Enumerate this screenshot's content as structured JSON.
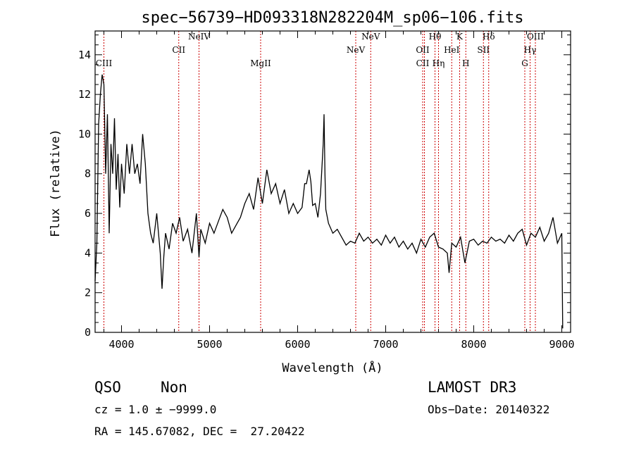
{
  "chart_data": {
    "type": "line",
    "title": "spec−56739−HD093318N282204M_sp06−106.fits",
    "xlabel": "Wavelength (Å)",
    "ylabel": "Flux (relative)",
    "xlim": [
      3700,
      9100
    ],
    "ylim": [
      0,
      15.2
    ],
    "xticks": [
      4000,
      5000,
      6000,
      7000,
      8000,
      9000
    ],
    "yticks": [
      0,
      2,
      4,
      6,
      8,
      10,
      12,
      14
    ],
    "grid": false,
    "series": [
      {
        "color": "#000000",
        "x": [
          3700,
          3720,
          3740,
          3760,
          3780,
          3800,
          3820,
          3840,
          3860,
          3880,
          3900,
          3920,
          3940,
          3960,
          3980,
          4000,
          4030,
          4060,
          4090,
          4120,
          4150,
          4180,
          4210,
          4240,
          4270,
          4300,
          4330,
          4360,
          4400,
          4440,
          4460,
          4480,
          4500,
          4540,
          4580,
          4620,
          4660,
          4700,
          4750,
          4800,
          4850,
          4880,
          4900,
          4950,
          5000,
          5050,
          5100,
          5150,
          5200,
          5250,
          5300,
          5350,
          5400,
          5450,
          5500,
          5550,
          5600,
          5650,
          5700,
          5750,
          5800,
          5850,
          5900,
          5950,
          6000,
          6050,
          6080,
          6100,
          6130,
          6150,
          6170,
          6200,
          6230,
          6260,
          6290,
          6300,
          6310,
          6320,
          6350,
          6400,
          6450,
          6500,
          6550,
          6600,
          6650,
          6700,
          6750,
          6800,
          6850,
          6900,
          6950,
          7000,
          7050,
          7100,
          7150,
          7200,
          7250,
          7300,
          7350,
          7400,
          7450,
          7500,
          7550,
          7600,
          7650,
          7700,
          7720,
          7750,
          7800,
          7850,
          7900,
          7950,
          8000,
          8050,
          8100,
          8150,
          8200,
          8250,
          8300,
          8350,
          8400,
          8450,
          8500,
          8550,
          8600,
          8650,
          8700,
          8750,
          8800,
          8850,
          8900,
          8950,
          9000,
          9010
        ],
        "y": [
          2.6,
          4.5,
          10.5,
          12.0,
          13.0,
          12.5,
          8.0,
          11.0,
          5.0,
          9.5,
          8.0,
          10.8,
          7.2,
          9.0,
          6.3,
          8.5,
          7.0,
          9.5,
          8.0,
          9.5,
          8.0,
          8.5,
          7.5,
          10.0,
          8.5,
          6.0,
          5.0,
          4.5,
          6.0,
          4.0,
          2.2,
          3.8,
          5.0,
          4.2,
          5.5,
          5.0,
          5.8,
          4.6,
          5.2,
          4.0,
          6.0,
          3.8,
          5.2,
          4.5,
          5.5,
          5.0,
          5.6,
          6.2,
          5.8,
          5.0,
          5.4,
          5.8,
          6.5,
          7.0,
          6.2,
          7.8,
          6.5,
          8.2,
          7.0,
          7.5,
          6.5,
          7.2,
          6.0,
          6.5,
          6.0,
          6.3,
          7.5,
          7.5,
          8.2,
          7.6,
          6.4,
          6.5,
          5.8,
          7.0,
          9.5,
          11.0,
          8.0,
          6.2,
          5.5,
          5.0,
          5.2,
          4.8,
          4.4,
          4.6,
          4.5,
          5.0,
          4.6,
          4.8,
          4.5,
          4.7,
          4.4,
          4.9,
          4.5,
          4.8,
          4.3,
          4.6,
          4.2,
          4.5,
          4.0,
          4.7,
          4.3,
          4.8,
          5.0,
          4.3,
          4.2,
          4.0,
          3.0,
          4.5,
          4.3,
          4.8,
          3.5,
          4.6,
          4.7,
          4.4,
          4.6,
          4.5,
          4.8,
          4.6,
          4.7,
          4.5,
          4.9,
          4.6,
          5.0,
          5.2,
          4.4,
          5.0,
          4.8,
          5.3,
          4.6,
          5.0,
          5.8,
          4.5,
          5.0,
          0.2
        ]
      }
    ],
    "lines": [
      {
        "x": 3800,
        "labels": [
          "CIII"
        ]
      },
      {
        "x": 4650,
        "labels": [
          "CII"
        ]
      },
      {
        "x": 4880,
        "labels": [
          "NeIV"
        ]
      },
      {
        "x": 5580,
        "labels": [
          "MgII"
        ]
      },
      {
        "x": 6660,
        "labels": [
          "NeV"
        ]
      },
      {
        "x": 6830,
        "labels": [
          "NeV"
        ]
      },
      {
        "x": 7420,
        "labels": [
          "OII",
          "CII"
        ]
      },
      {
        "x": 7440,
        "labels": []
      },
      {
        "x": 7560,
        "labels": [
          "Hθ"
        ]
      },
      {
        "x": 7600,
        "labels": [
          "Hη"
        ]
      },
      {
        "x": 7750,
        "labels": [
          "HeI"
        ]
      },
      {
        "x": 7840,
        "labels": [
          "K"
        ]
      },
      {
        "x": 7910,
        "labels": [
          "H"
        ]
      },
      {
        "x": 8110,
        "labels": [
          "SII"
        ]
      },
      {
        "x": 8170,
        "labels": [
          "Hδ"
        ]
      },
      {
        "x": 8580,
        "labels": [
          "G"
        ]
      },
      {
        "x": 8640,
        "labels": [
          "Hγ"
        ]
      },
      {
        "x": 8700,
        "labels": [
          "OIII"
        ]
      }
    ]
  },
  "footer": {
    "class": "QSO",
    "subclass": "Non",
    "cz": "cz = 1.0 ± −9999.0",
    "radec": "RA = 145.67082, DEC =  27.20422",
    "survey": "LAMOST DR3",
    "obsdate": "Obs−Date: 20140322"
  },
  "colors": {
    "spectrum": "#000000",
    "line_marker": "#cc0000"
  }
}
